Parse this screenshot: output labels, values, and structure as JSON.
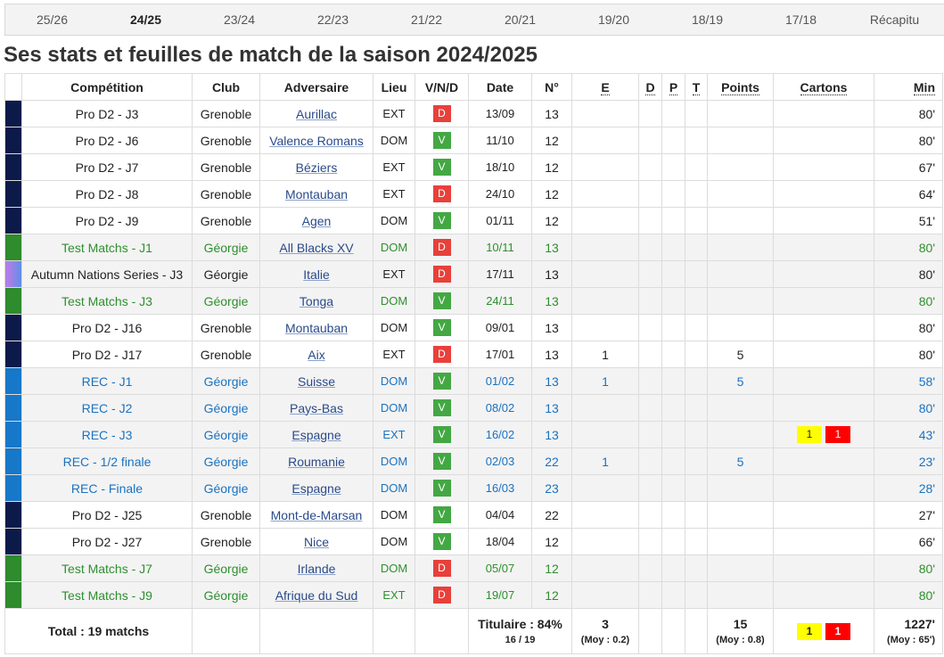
{
  "tabs": {
    "items": [
      "25/26",
      "24/25",
      "23/24",
      "22/23",
      "21/22",
      "20/21",
      "19/20",
      "18/19",
      "17/18",
      "Récapitu"
    ],
    "active": 1
  },
  "heading": "Ses stats et feuilles de match de la saison 2024/2025",
  "table": {
    "columns": [
      "Compétition",
      "Club",
      "Adversaire",
      "Lieu",
      "V/N/D",
      "Date",
      "N°",
      "E",
      "D",
      "P",
      "T",
      "Points",
      "Cartons",
      "Min"
    ],
    "rows": [
      {
        "bar": "#0c1a4a",
        "competition": "Pro D2 - J3",
        "club": "Grenoble",
        "opponent": "Aurillac",
        "venue": "EXT",
        "result": "D",
        "result_color": "#e8403a",
        "date": "13/09",
        "number": 13,
        "minutes": "80'"
      },
      {
        "bar": "#0c1a4a",
        "competition": "Pro D2 - J6",
        "club": "Grenoble",
        "opponent": "Valence Romans",
        "venue": "DOM",
        "result": "V",
        "result_color": "#43a843",
        "date": "11/10",
        "number": 12,
        "minutes": "80'"
      },
      {
        "bar": "#0c1a4a",
        "competition": "Pro D2 - J7",
        "club": "Grenoble",
        "opponent": "Béziers",
        "venue": "EXT",
        "result": "V",
        "result_color": "#43a843",
        "date": "18/10",
        "number": 12,
        "minutes": "67'"
      },
      {
        "bar": "#0c1a4a",
        "competition": "Pro D2 - J8",
        "club": "Grenoble",
        "opponent": "Montauban",
        "venue": "EXT",
        "result": "D",
        "result_color": "#e8403a",
        "date": "24/10",
        "number": 12,
        "minutes": "64'"
      },
      {
        "bar": "#0c1a4a",
        "competition": "Pro D2 - J9",
        "club": "Grenoble",
        "opponent": "Agen",
        "venue": "DOM",
        "result": "V",
        "result_color": "#43a843",
        "date": "01/11",
        "number": 12,
        "minutes": "51'"
      },
      {
        "bar": "#2e8b2e",
        "text_color": "#2e8f2e",
        "shaded": true,
        "competition": "Test Matchs - J1",
        "club": "Géorgie",
        "opponent": "All Blacks XV",
        "venue": "DOM",
        "result": "D",
        "result_color": "#e8403a",
        "date": "10/11",
        "number": 13,
        "minutes": "80'"
      },
      {
        "bar": "linear-gradient(90deg,#c27be8,#5b8fe6)",
        "shaded": true,
        "competition": "Autumn Nations Series - J3",
        "club": "Géorgie",
        "opponent": "Italie",
        "venue": "EXT",
        "result": "D",
        "result_color": "#e8403a",
        "date": "17/11",
        "number": 13,
        "minutes": "80'"
      },
      {
        "bar": "#2e8b2e",
        "text_color": "#2e8f2e",
        "shaded": true,
        "competition": "Test Matchs - J3",
        "club": "Géorgie",
        "opponent": "Tonga",
        "venue": "DOM",
        "result": "V",
        "result_color": "#43a843",
        "date": "24/11",
        "number": 13,
        "minutes": "80'"
      },
      {
        "bar": "#0c1a4a",
        "competition": "Pro D2 - J16",
        "club": "Grenoble",
        "opponent": "Montauban",
        "venue": "DOM",
        "result": "V",
        "result_color": "#43a843",
        "date": "09/01",
        "number": 13,
        "minutes": "80'"
      },
      {
        "bar": "#0c1a4a",
        "competition": "Pro D2 - J17",
        "club": "Grenoble",
        "opponent": "Aix",
        "venue": "EXT",
        "result": "D",
        "result_color": "#e8403a",
        "date": "17/01",
        "number": 13,
        "tries": 1,
        "points": 5,
        "minutes": "80'"
      },
      {
        "bar": "#1777c8",
        "text_color": "#1a72c0",
        "shaded": true,
        "competition": "REC - J1",
        "club": "Géorgie",
        "opponent": "Suisse",
        "venue": "DOM",
        "result": "V",
        "result_color": "#43a843",
        "date": "01/02",
        "number": 13,
        "tries": 1,
        "points": 5,
        "minutes": "58'"
      },
      {
        "bar": "#1777c8",
        "text_color": "#1a72c0",
        "shaded": true,
        "competition": "REC - J2",
        "club": "Géorgie",
        "opponent": "Pays-Bas",
        "venue": "DOM",
        "result": "V",
        "result_color": "#43a843",
        "date": "08/02",
        "number": 13,
        "minutes": "80'"
      },
      {
        "bar": "#1777c8",
        "text_color": "#1a72c0",
        "shaded": true,
        "competition": "REC - J3",
        "club": "Géorgie",
        "opponent": "Espagne",
        "venue": "EXT",
        "result": "V",
        "result_color": "#43a843",
        "date": "16/02",
        "number": 13,
        "cards": [
          {
            "label": "1",
            "color": "#ffff00"
          },
          {
            "label": "1",
            "color": "#ff0000"
          }
        ],
        "minutes": "43'"
      },
      {
        "bar": "#1777c8",
        "text_color": "#1a72c0",
        "shaded": true,
        "competition": "REC - 1/2 finale",
        "club": "Géorgie",
        "opponent": "Roumanie",
        "venue": "DOM",
        "result": "V",
        "result_color": "#43a843",
        "date": "02/03",
        "number": 22,
        "tries": 1,
        "points": 5,
        "minutes": "23'"
      },
      {
        "bar": "#1777c8",
        "text_color": "#1a72c0",
        "shaded": true,
        "competition": "REC - Finale",
        "club": "Géorgie",
        "opponent": "Espagne",
        "venue": "DOM",
        "result": "V",
        "result_color": "#43a843",
        "date": "16/03",
        "number": 23,
        "minutes": "28'"
      },
      {
        "bar": "#0c1a4a",
        "competition": "Pro D2 - J25",
        "club": "Grenoble",
        "opponent": "Mont-de-Marsan",
        "venue": "DOM",
        "result": "V",
        "result_color": "#43a843",
        "date": "04/04",
        "number": 22,
        "minutes": "27'"
      },
      {
        "bar": "#0c1a4a",
        "competition": "Pro D2 - J27",
        "club": "Grenoble",
        "opponent": "Nice",
        "venue": "DOM",
        "result": "V",
        "result_color": "#43a843",
        "date": "18/04",
        "number": 12,
        "minutes": "66'"
      },
      {
        "bar": "#2e8b2e",
        "text_color": "#2e8f2e",
        "shaded": true,
        "competition": "Test Matchs - J7",
        "club": "Géorgie",
        "opponent": "Irlande",
        "venue": "DOM",
        "result": "D",
        "result_color": "#e8403a",
        "date": "05/07",
        "number": 12,
        "minutes": "80'"
      },
      {
        "bar": "#2e8b2e",
        "text_color": "#2e8f2e",
        "shaded": true,
        "competition": "Test Matchs - J9",
        "club": "Géorgie",
        "opponent": "Afrique du Sud",
        "venue": "EXT",
        "result": "D",
        "result_color": "#e8403a",
        "date": "19/07",
        "number": 12,
        "minutes": "80'"
      }
    ],
    "footer": {
      "label": "Total : 19 matchs",
      "starter": "Titulaire : 84%",
      "starter_count": "16 / 19",
      "tries": 3,
      "tries_avg": "(Moy : 0.2)",
      "points": 15,
      "points_avg": "(Moy : 0.8)",
      "cards": [
        {
          "label": "1",
          "color": "#ffff00"
        },
        {
          "label": "1",
          "color": "#ff0000"
        }
      ],
      "minutes": "1227'",
      "minutes_avg": "(Moy : 65')"
    }
  }
}
